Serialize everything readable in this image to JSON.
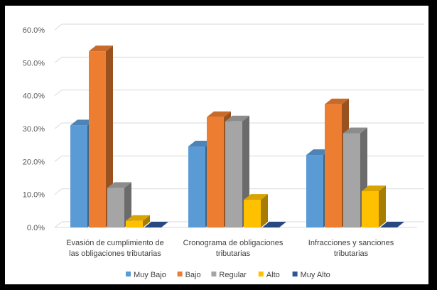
{
  "chart_data": {
    "type": "bar",
    "style": "3d-clustered-column",
    "categories": [
      [
        "Evasión de cumplimiento de",
        "las obligaciones tributarias"
      ],
      [
        "Cronograma de obligaciones",
        "tributarias"
      ],
      [
        "Infracciones y sanciones",
        "tributarias"
      ]
    ],
    "series": [
      {
        "name": "Muy Bajo",
        "color": "#5B9BD5",
        "values": [
          31.0,
          24.6,
          22.0
        ]
      },
      {
        "name": "Bajo",
        "color": "#ED7D31",
        "values": [
          53.5,
          33.5,
          37.4
        ]
      },
      {
        "name": "Regular",
        "color": "#A5A5A5",
        "values": [
          12.0,
          32.2,
          28.6
        ]
      },
      {
        "name": "Alto",
        "color": "#FFC000",
        "values": [
          2.0,
          8.4,
          11.0
        ]
      },
      {
        "name": "Muy Alto",
        "color": "#2F5597",
        "values": [
          0.0,
          0.0,
          0.0
        ]
      }
    ],
    "ylim": [
      0,
      60
    ],
    "yticks": [
      "0.0%",
      "10.0%",
      "20.0%",
      "30.0%",
      "40.0%",
      "50.0%",
      "60.0%"
    ],
    "legend_position": "bottom",
    "grid": true
  }
}
